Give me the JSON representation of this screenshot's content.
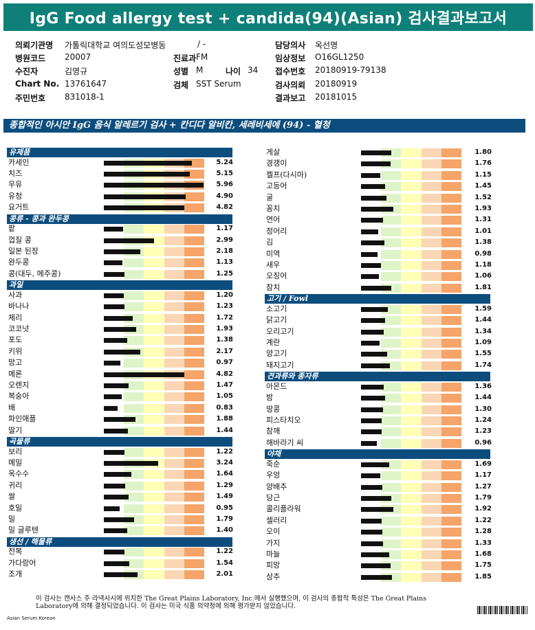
{
  "report_title": "IgG Food allergy test + candida(94)(Asian) 검사결과보고서",
  "patient_info": {
    "institution_label": "의뢰기관명",
    "institution": "가톨릭대학교 여의도성모병동",
    "ward": "/ -",
    "doctor_label": "담당의사",
    "doctor": "옥선명",
    "hospital_code_label": "병원코드",
    "hospital_code": "20007",
    "department_label": "진료과",
    "department": "FM",
    "clinical_info_label": "임상정보",
    "clinical_info": "O16GL1250",
    "patient_label": "수진자",
    "patient": "김영규",
    "sex_label": "성별",
    "sex": "M",
    "age_label": "나이",
    "age": "34",
    "accession_label": "접수번호",
    "accession": "20180919-79138",
    "chart_label": "Chart No.",
    "chart": "13761647",
    "specimen_label": "검체",
    "specimen": "SST Serum",
    "request_date_label": "검사의뢰",
    "request_date": "20180919",
    "resident_id_label": "주민번호",
    "resident_id": "831018-1",
    "report_date_label": "결과보고",
    "report_date": "20181015"
  },
  "subtitle": "종합적인 아시안 IgG 음식 알레르기 검사 + 칸디다 알비칸, 세레비세에 (94) - 혈청",
  "scale_max": 6,
  "colors": {
    "header": "#0f7f79",
    "section": "#0d4d7e"
  },
  "left_column": [
    {
      "section": "유제품",
      "items": [
        {
          "name": "카세인",
          "value": "5.24"
        },
        {
          "name": "치즈",
          "value": "5.15"
        },
        {
          "name": "우유",
          "value": "5.96"
        },
        {
          "name": "유청",
          "value": "4.90"
        },
        {
          "name": "요거트",
          "value": "4.82"
        }
      ]
    },
    {
      "section": "콩류 - 콩과 완두콩",
      "items": [
        {
          "name": "팥",
          "value": "1.17"
        },
        {
          "name": "껍질 콩",
          "value": "2.99"
        },
        {
          "name": "일본 된장",
          "value": "2.18"
        },
        {
          "name": "완두콩",
          "value": "1.13"
        },
        {
          "name": "콩(대두, 메주콩)",
          "value": "1.25"
        }
      ]
    },
    {
      "section": "과일",
      "items": [
        {
          "name": "사과",
          "value": "1.20"
        },
        {
          "name": "바나나",
          "value": "1.23"
        },
        {
          "name": "체리",
          "value": "1.72"
        },
        {
          "name": "코코넛",
          "value": "1.93"
        },
        {
          "name": "포도",
          "value": "1.38"
        },
        {
          "name": "키위",
          "value": "2.17"
        },
        {
          "name": "망고",
          "value": "0.97"
        },
        {
          "name": "메론",
          "value": "4.82"
        },
        {
          "name": "오렌지",
          "value": "1.47"
        },
        {
          "name": "복숭아",
          "value": "1.05"
        },
        {
          "name": "배",
          "value": "0.83"
        },
        {
          "name": "파인애플",
          "value": "1.88"
        },
        {
          "name": "딸기",
          "value": "1.44"
        }
      ]
    },
    {
      "section": "곡물류",
      "items": [
        {
          "name": "보리",
          "value": "1.22"
        },
        {
          "name": "메밀",
          "value": "3.24"
        },
        {
          "name": "옥수수",
          "value": "1.64"
        },
        {
          "name": "귀리",
          "value": "1.29"
        },
        {
          "name": "쌀",
          "value": "1.49"
        },
        {
          "name": "호밀",
          "value": "0.95"
        },
        {
          "name": "밀",
          "value": "1.79"
        },
        {
          "name": "밀 글루텐",
          "value": "1.40"
        }
      ]
    },
    {
      "section": "생선 / 해물류",
      "items": [
        {
          "name": "전복",
          "value": "1.22"
        },
        {
          "name": "가다랑어",
          "value": "1.54"
        },
        {
          "name": "조개",
          "value": "2.01"
        }
      ]
    }
  ],
  "right_column": [
    {
      "section": "",
      "items": [
        {
          "name": "게살",
          "value": "1.80"
        },
        {
          "name": "경갱이",
          "value": "1.76"
        },
        {
          "name": "켈프(다시마)",
          "value": "1.15"
        },
        {
          "name": "고등어",
          "value": "1.45"
        },
        {
          "name": "굴",
          "value": "1.52"
        },
        {
          "name": "꽁치",
          "value": "1.93"
        },
        {
          "name": "연어",
          "value": "1.31"
        },
        {
          "name": "정어리",
          "value": "1.01"
        },
        {
          "name": "김",
          "value": "1.38"
        },
        {
          "name": "미역",
          "value": "0.98"
        },
        {
          "name": "새우",
          "value": "1.18"
        },
        {
          "name": "오징어",
          "value": "1.06"
        },
        {
          "name": "참치",
          "value": "1.81"
        }
      ]
    },
    {
      "section": "고기 / Fowl",
      "items": [
        {
          "name": "소고기",
          "value": "1.59"
        },
        {
          "name": "닭고기",
          "value": "1.44"
        },
        {
          "name": "오리고기",
          "value": "1.34"
        },
        {
          "name": "계란",
          "value": "1.09"
        },
        {
          "name": "양고기",
          "value": "1.55"
        },
        {
          "name": "돼지고기",
          "value": "1.74"
        }
      ]
    },
    {
      "section": "견과류와 종자류",
      "items": [
        {
          "name": "아몬드",
          "value": "1.36"
        },
        {
          "name": "밤",
          "value": "1.44"
        },
        {
          "name": "땅콩",
          "value": "1.30"
        },
        {
          "name": "피스타치오",
          "value": "1.24"
        },
        {
          "name": "참깨",
          "value": "1.23"
        },
        {
          "name": "해바라기 씨",
          "value": "0.96"
        }
      ]
    },
    {
      "section": "야채",
      "items": [
        {
          "name": "죽순",
          "value": "1.69"
        },
        {
          "name": "우엉",
          "value": "1.17"
        },
        {
          "name": "양배추",
          "value": "1.27"
        },
        {
          "name": "당근",
          "value": "1.79"
        },
        {
          "name": "콜리플라워",
          "value": "1.92"
        },
        {
          "name": "셀러리",
          "value": "1.22"
        },
        {
          "name": "오이",
          "value": "1.28"
        },
        {
          "name": "가지",
          "value": "1.33"
        },
        {
          "name": "마늘",
          "value": "1.68"
        },
        {
          "name": "피망",
          "value": "1.75"
        },
        {
          "name": "상추",
          "value": "1.85"
        }
      ]
    }
  ],
  "footer": "이 검사는 캔사스 주 라넥사시에 위치한 The Great Plains Laboratory, Inc.에서 실행했으며, 이 검사의 종합적 특성은 The Great Plains Laboratory에 의해 결정되었습니다. 이 검사는 미국 식품 의약청에 의해 평가받지 않았습니다.",
  "footer_small": "Asian Serum Korean"
}
